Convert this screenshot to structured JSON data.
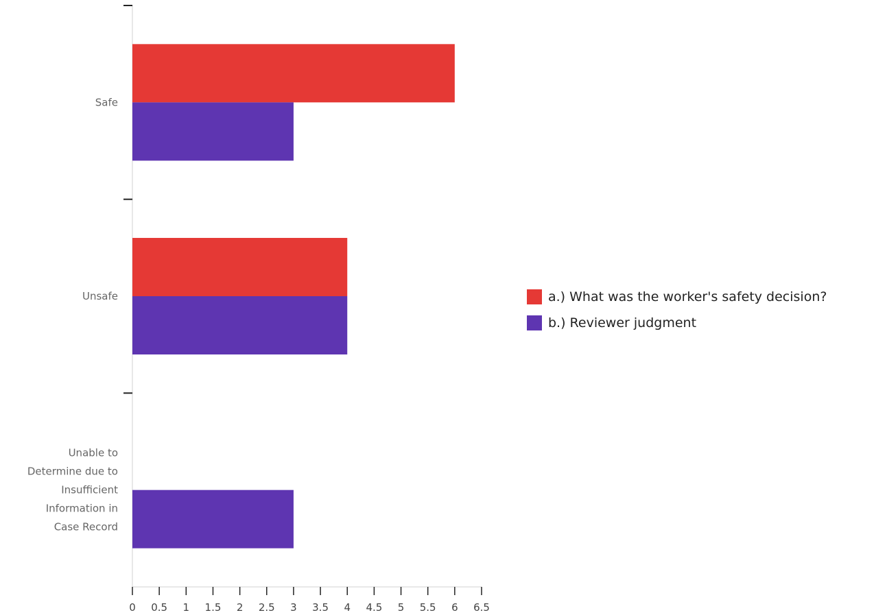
{
  "chart_data": {
    "type": "bar",
    "orientation": "horizontal",
    "categories": [
      "Safe",
      "Unsafe",
      "Unable to Determine due to Insufficient Information in Case Record"
    ],
    "category_lines": [
      [
        "Safe"
      ],
      [
        "Unsafe"
      ],
      [
        "Unable to",
        "Determine due to",
        "Insufficient",
        "Information in",
        "Case Record"
      ]
    ],
    "series": [
      {
        "name": "a.) What was the worker's safety decision?",
        "values": [
          6,
          4,
          0
        ],
        "color": "#e53935"
      },
      {
        "name": "b.) Reviewer judgment",
        "values": [
          3,
          4,
          3
        ],
        "color": "#5e35b1"
      }
    ],
    "xlim": [
      0,
      6.5
    ],
    "xticks": [
      "0",
      "0.5",
      "1",
      "1.5",
      "2",
      "2.5",
      "3",
      "3.5",
      "4",
      "4.5",
      "5",
      "5.5",
      "6",
      "6.5"
    ],
    "title": "",
    "xlabel": "",
    "ylabel": "",
    "grid": false,
    "legend_position": "right"
  }
}
